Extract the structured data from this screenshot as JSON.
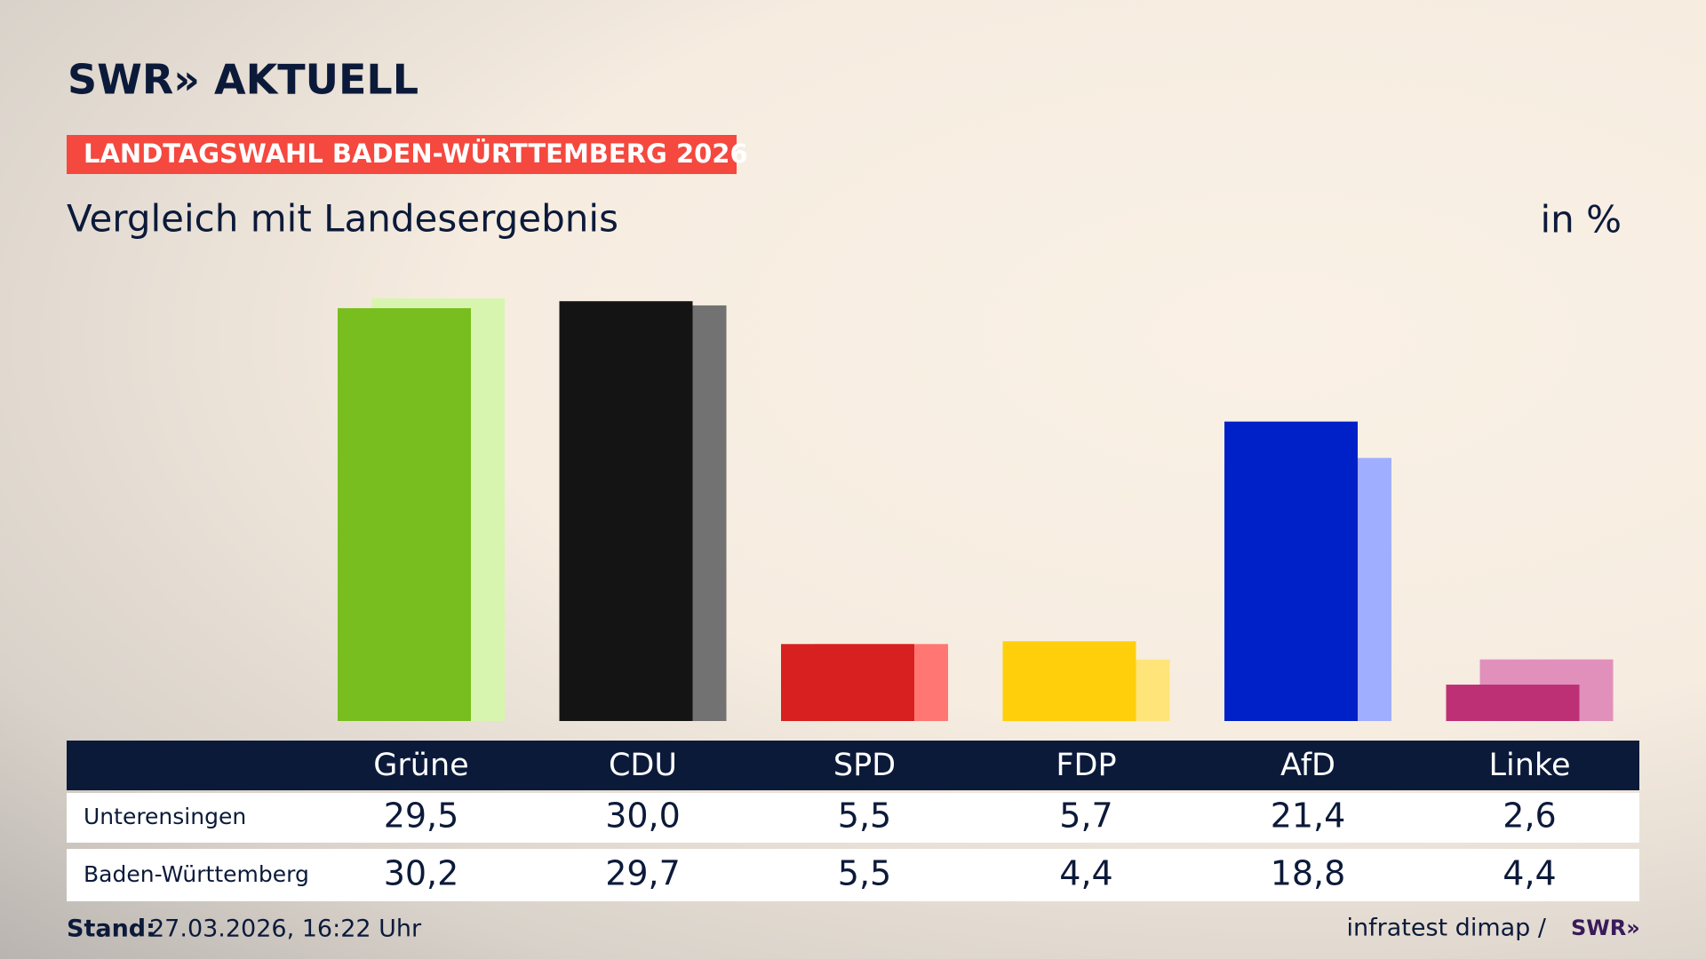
{
  "header": {
    "logo": "SWR» AKTUELL",
    "banner": "LANDTAGSWAHL BADEN-WÜRTTEMBERG 2026"
  },
  "chart_data": {
    "type": "bar",
    "title": "Vergleich mit Landesergebnis",
    "unit": "in %",
    "categories": [
      "Grüne",
      "CDU",
      "SPD",
      "FDP",
      "AfD",
      "Linke"
    ],
    "series": [
      {
        "name": "Unterensingen",
        "values": [
          29.5,
          30.0,
          5.5,
          5.7,
          21.4,
          2.6
        ],
        "value_labels": [
          "29,5",
          "30,0",
          "5,5",
          "5,7",
          "21,4",
          "2,6"
        ],
        "colors": [
          "#78be1e",
          "#141414",
          "#d7201f",
          "#ffcf0b",
          "#0021c8",
          "#bd3075"
        ]
      },
      {
        "name": "Baden-Württemberg",
        "values": [
          30.2,
          29.7,
          5.5,
          4.4,
          18.8,
          4.4
        ],
        "value_labels": [
          "30,2",
          "29,7",
          "5,5",
          "4,4",
          "18,8",
          "4,4"
        ],
        "colors": [
          "#d8f5b0",
          "#727272",
          "#ff7672",
          "#ffe47a",
          "#a0aeff",
          "#e090bb"
        ]
      }
    ]
  },
  "footer": {
    "stand_label": "Stand:",
    "stand_value": "27.03.2026, 16:22 Uhr",
    "source": "infratest dimap /",
    "source_logo": "SWR»"
  }
}
